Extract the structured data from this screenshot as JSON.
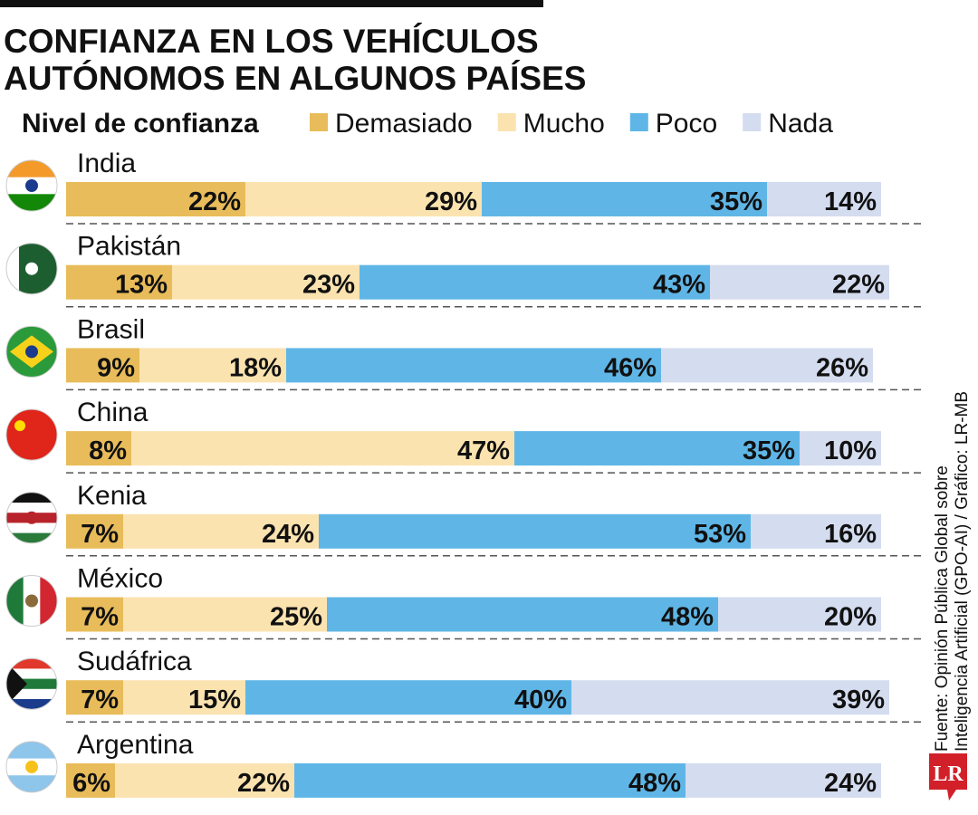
{
  "chart_data": {
    "type": "stacked-bar-horizontal",
    "title": [
      "CONFIANZA EN LOS VEHÍCULOS",
      "AUTÓNOMOS EN ALGUNOS PAÍSES"
    ],
    "legend_title": "Nivel de confianza",
    "categories": [
      "India",
      "Pakistán",
      "Brasil",
      "China",
      "Kenia",
      "México",
      "Sudáfrica",
      "Argentina"
    ],
    "series": [
      {
        "name": "Demasiado",
        "color": "#e8bc5a",
        "values": [
          22,
          13,
          9,
          8,
          7,
          7,
          7,
          6
        ],
        "value_labels": [
          "22%",
          "13%",
          "9%",
          "8%",
          "7%",
          "7%",
          "7%",
          "6%"
        ]
      },
      {
        "name": "Mucho",
        "color": "#fbe3b0",
        "values": [
          29,
          23,
          18,
          47,
          24,
          25,
          15,
          22
        ],
        "value_labels": [
          "29%",
          "23%",
          "18%",
          "47%",
          "24%",
          "25%",
          "15%",
          "22%"
        ]
      },
      {
        "name": "Poco",
        "color": "#5fb6e6",
        "values": [
          35,
          43,
          46,
          35,
          53,
          48,
          40,
          48
        ],
        "value_labels": [
          "35%",
          "43%",
          "46%",
          "35%",
          "53%",
          "48%",
          "40%",
          "48%"
        ]
      },
      {
        "name": "Nada",
        "color": "#d4dcef",
        "values": [
          14,
          22,
          26,
          10,
          16,
          20,
          39,
          24
        ],
        "value_labels": [
          "14%",
          "22%",
          "26%",
          "10%",
          "16%",
          "20%",
          "39%",
          "24%"
        ]
      }
    ],
    "source": [
      "Fuente: Opinión Pública Global sobre",
      "Inteligencia Artificial (GPO-AI) / Gráfico: LR-MB"
    ],
    "logo": "LR"
  }
}
